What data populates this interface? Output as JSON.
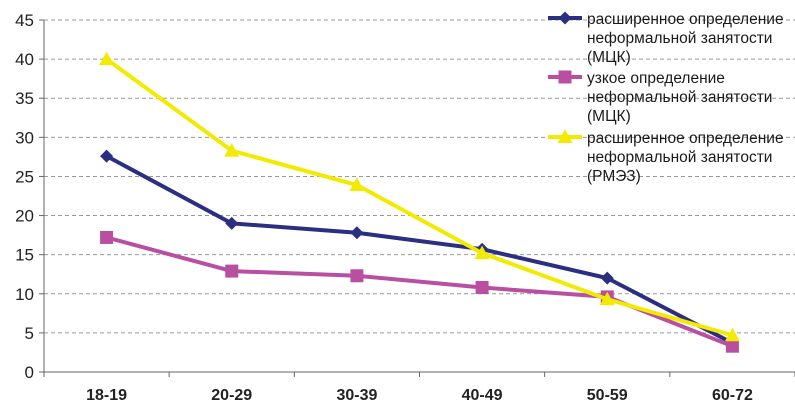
{
  "chart_data": {
    "type": "line",
    "categories": [
      "18-19",
      "20-29",
      "30-39",
      "40-49",
      "50-59",
      "60-72"
    ],
    "ylim": [
      0,
      45
    ],
    "yticks": [
      0,
      5,
      10,
      15,
      20,
      25,
      30,
      35,
      40,
      45
    ],
    "grid": "horizontal-dashed",
    "legend_position": "top-right",
    "series": [
      {
        "name": "расширенное определение неформальной занятости (МЦК)",
        "legend_lines": [
          "расширенное определение",
          "неформальной занятости",
          "(МЦК)"
        ],
        "values": [
          27.6,
          19.0,
          17.8,
          15.7,
          12.0,
          3.7
        ],
        "color": "#2b2f82",
        "marker": "diamond"
      },
      {
        "name": "узкое определение неформальной занятости (МЦК)",
        "legend_lines": [
          "узкое определение",
          "неформальной занятости",
          "(МЦК)"
        ],
        "values": [
          17.2,
          12.9,
          12.3,
          10.8,
          9.6,
          3.3
        ],
        "color": "#b94fa0",
        "marker": "square"
      },
      {
        "name": "расширенное определение неформальной занятости (РМЭЗ)",
        "legend_lines": [
          "расширенное определение",
          "неформальной занятости",
          "(РМЭЗ)"
        ],
        "values": [
          40.0,
          28.3,
          23.9,
          15.2,
          9.3,
          4.7
        ],
        "color": "#f2ea00",
        "marker": "triangle"
      }
    ]
  }
}
